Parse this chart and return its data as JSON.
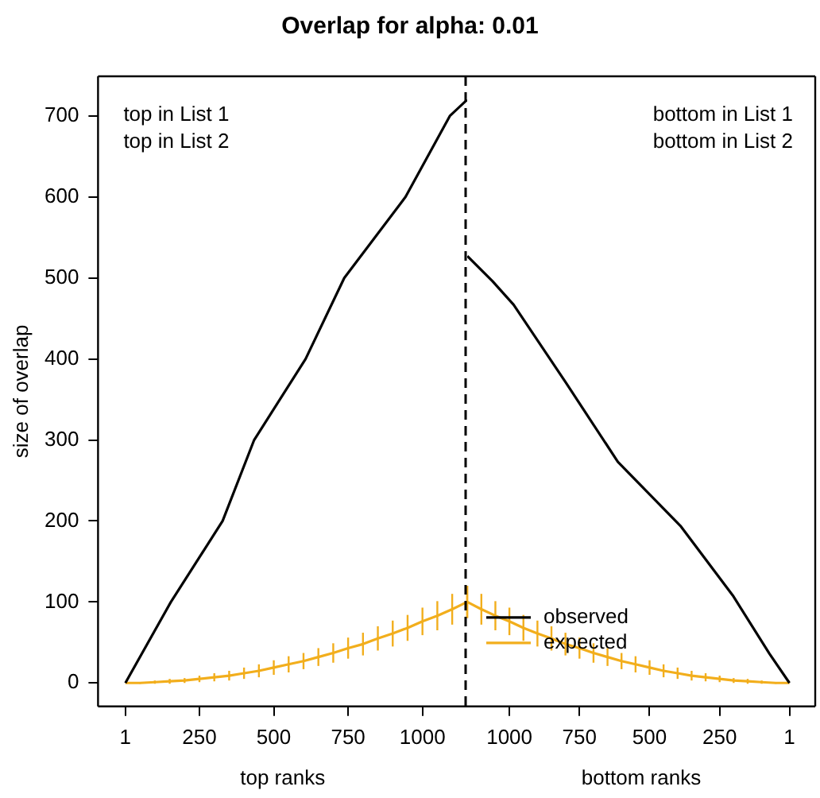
{
  "chart_data": [
    {
      "type": "line",
      "title": "Overlap for alpha: 0.01",
      "xlabel": "top ranks",
      "ylabel": "size of overlap",
      "annotations": [
        "top in List 1",
        "top in List 2"
      ],
      "xlim": [
        -91,
        1150.5
      ],
      "ylim": [
        -29,
        749
      ],
      "xticks": [
        1,
        250,
        500,
        750,
        1000
      ],
      "yticks": [
        0,
        100,
        200,
        300,
        400,
        500,
        600,
        700
      ],
      "ref_lines": [
        {
          "axis": "x",
          "value": 1150.5,
          "label": null,
          "color": "#000000",
          "line_style": "dashed"
        }
      ],
      "grid": false,
      "marker": "none",
      "series": [
        {
          "color": "#000000",
          "x": [
            1,
            154,
            328,
            434,
            607,
            737,
            943,
            1092,
            1150
          ],
          "values": [
            0,
            100,
            200,
            300,
            400,
            500,
            600,
            700,
            720
          ]
        },
        {
          "color": "#f2ae1c",
          "x": [
            1,
            50,
            100,
            150,
            200,
            250,
            300,
            350,
            400,
            450,
            500,
            550,
            600,
            650,
            700,
            750,
            800,
            850,
            900,
            950,
            1000,
            1050,
            1100,
            1150
          ],
          "values": [
            0,
            0,
            1,
            2,
            3,
            5,
            7,
            9,
            12,
            15,
            19,
            23,
            27,
            32,
            37,
            43,
            48,
            55,
            61,
            68,
            76,
            83,
            91,
            100
          ],
          "errors": [
            0,
            1,
            2,
            3,
            3,
            4,
            5,
            6,
            7,
            8,
            9,
            10,
            10,
            11,
            12,
            13,
            14,
            15,
            16,
            16,
            17,
            18,
            19,
            20
          ]
        }
      ]
    },
    {
      "type": "line",
      "xlabel": "bottom ranks",
      "annotations": [
        "bottom in List 1",
        "bottom in List 2"
      ],
      "xlim": [
        1150.5,
        -91
      ],
      "ylim": [
        -29,
        749
      ],
      "xticks": [
        1000,
        750,
        500,
        250,
        1
      ],
      "yticks": [
        0,
        100,
        200,
        300,
        400,
        500,
        600,
        700
      ],
      "tick_labels": "x",
      "legend": "bottom left",
      "grid": false,
      "marker": "none",
      "series": [
        {
          "name": "observed",
          "color": "#000000",
          "x": [
            1150,
            1060,
            985,
            799,
            613,
            390,
            203,
            72,
            1
          ],
          "values": [
            527,
            496,
            467,
            371,
            273,
            194,
            108,
            36,
            0
          ]
        },
        {
          "name": "expected",
          "color": "#f2ae1c",
          "x": [
            1150,
            1100,
            1050,
            1000,
            950,
            900,
            850,
            800,
            750,
            700,
            650,
            600,
            550,
            500,
            450,
            400,
            350,
            300,
            250,
            200,
            150,
            100,
            50,
            1
          ],
          "values": [
            100,
            91,
            83,
            76,
            68,
            61,
            55,
            48,
            43,
            37,
            32,
            27,
            23,
            19,
            15,
            12,
            9,
            7,
            5,
            3,
            2,
            1,
            0,
            0
          ],
          "errors": [
            20,
            19,
            18,
            17,
            16,
            16,
            15,
            14,
            13,
            12,
            11,
            10,
            10,
            9,
            8,
            7,
            6,
            5,
            4,
            3,
            3,
            2,
            1,
            0
          ]
        }
      ]
    }
  ]
}
